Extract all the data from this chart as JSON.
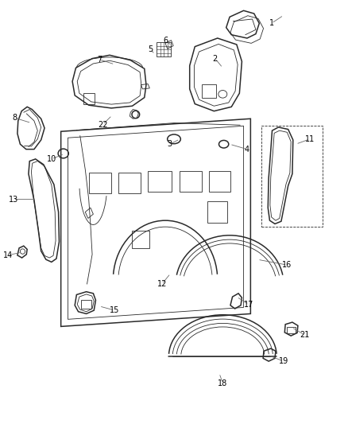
{
  "bg_color": "#ffffff",
  "line_color": "#2a2a2a",
  "label_color": "#000000",
  "label_fs": 7,
  "lw_main": 1.1,
  "lw_inner": 0.6,
  "labels": [
    [
      1,
      0.815,
      0.964,
      0.78,
      0.945
    ],
    [
      2,
      0.64,
      0.84,
      0.618,
      0.862
    ],
    [
      3,
      0.517,
      0.672,
      0.488,
      0.66
    ],
    [
      4,
      0.66,
      0.66,
      0.71,
      0.648
    ],
    [
      5,
      0.445,
      0.872,
      0.432,
      0.884
    ],
    [
      6,
      0.493,
      0.892,
      0.477,
      0.905
    ],
    [
      7,
      0.33,
      0.848,
      0.285,
      0.86
    ],
    [
      8,
      0.09,
      0.71,
      0.042,
      0.722
    ],
    [
      10,
      0.185,
      0.637,
      0.148,
      0.625
    ],
    [
      11,
      0.85,
      0.66,
      0.89,
      0.672
    ],
    [
      12,
      0.49,
      0.355,
      0.465,
      0.33
    ],
    [
      13,
      0.105,
      0.53,
      0.038,
      0.53
    ],
    [
      14,
      0.062,
      0.405,
      0.022,
      0.398
    ],
    [
      15,
      0.285,
      0.278,
      0.33,
      0.268
    ],
    [
      16,
      0.74,
      0.388,
      0.825,
      0.375
    ],
    [
      17,
      0.68,
      0.3,
      0.715,
      0.282
    ],
    [
      18,
      0.63,
      0.12,
      0.64,
      0.096
    ],
    [
      19,
      0.768,
      0.163,
      0.815,
      0.148
    ],
    [
      21,
      0.838,
      0.228,
      0.876,
      0.21
    ],
    [
      22,
      0.322,
      0.728,
      0.295,
      0.706
    ]
  ]
}
